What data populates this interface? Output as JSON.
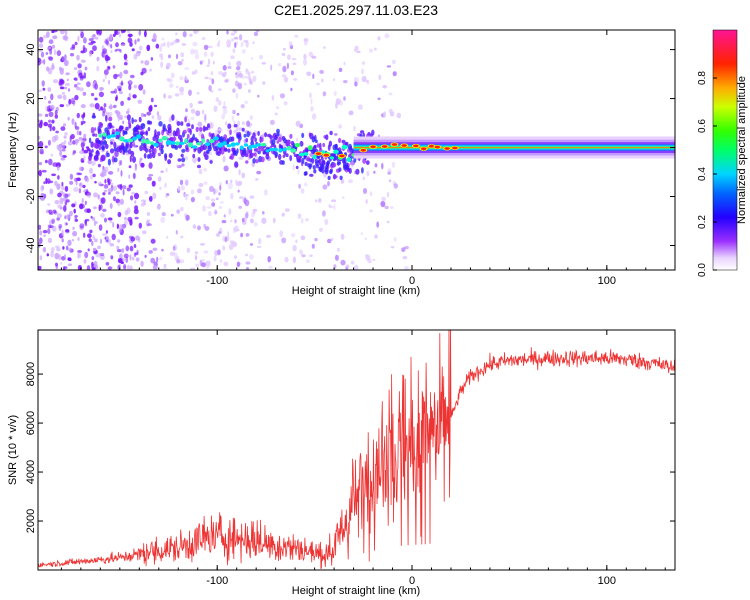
{
  "figure_title": "C2E1.2025.297.11.03.E23",
  "chart_data": [
    {
      "type": "heatmap",
      "name": "spectrogram",
      "xlabel": "Height of straight line (km)",
      "ylabel": "Frequency (Hz)",
      "xlim": [
        -192,
        135
      ],
      "ylim": [
        -50,
        48
      ],
      "xticks": [
        -100,
        0,
        100
      ],
      "yticks": [
        -40,
        -20,
        0,
        20,
        40
      ],
      "colorbar": {
        "label": "Normalized spectral amplitude",
        "range": [
          0,
          1
        ],
        "ticks": [
          0.0,
          0.2,
          0.4,
          0.6,
          0.8
        ],
        "tick_labels": [
          "0.0",
          "0.2",
          "0.4",
          "0.6",
          "0.8"
        ],
        "colors": [
          "#ffffff",
          "#9b30ff",
          "#0000ff",
          "#00d5ff",
          "#00ff00",
          "#ffff00",
          "#ff0000",
          "#ff1493"
        ]
      },
      "centerline": {
        "x": [
          -160,
          -130,
          -100,
          -80,
          -60,
          -50,
          -45,
          -40,
          -30,
          -20,
          -10,
          0,
          10,
          20,
          40,
          60,
          135
        ],
        "freq": [
          4,
          3,
          2,
          0,
          -1,
          -2,
          -3,
          -4,
          -2,
          0,
          1,
          0.5,
          0.3,
          0,
          0,
          0,
          0
        ]
      }
    },
    {
      "type": "line",
      "name": "snr",
      "xlabel": "Height of straight line (km)",
      "ylabel": "SNR (10 * v/v)",
      "xlim": [
        -192,
        135
      ],
      "ylim": [
        0,
        9800
      ],
      "xticks": [
        -100,
        0,
        100
      ],
      "yticks": [
        2000,
        4000,
        6000,
        8000
      ],
      "color": "#ee3333",
      "series": [
        {
          "name": "SNR",
          "x": [
            -192,
            -170,
            -150,
            -140,
            -130,
            -120,
            -110,
            -100,
            -90,
            -80,
            -70,
            -60,
            -50,
            -45,
            -40,
            -35,
            -30,
            -25,
            -20,
            -15,
            -10,
            -5,
            0,
            5,
            10,
            15,
            20,
            25,
            30,
            40,
            50,
            60,
            70,
            80,
            90,
            100,
            110,
            120,
            135
          ],
          "y": [
            200,
            350,
            500,
            650,
            800,
            900,
            1200,
            1400,
            1300,
            1200,
            1000,
            900,
            700,
            600,
            1000,
            1800,
            2600,
            3400,
            3900,
            4300,
            4700,
            5000,
            5100,
            5200,
            5400,
            5600,
            6200,
            7300,
            7900,
            8400,
            8550,
            8600,
            8650,
            8650,
            8650,
            8650,
            8600,
            8500,
            8250
          ]
        }
      ]
    }
  ]
}
